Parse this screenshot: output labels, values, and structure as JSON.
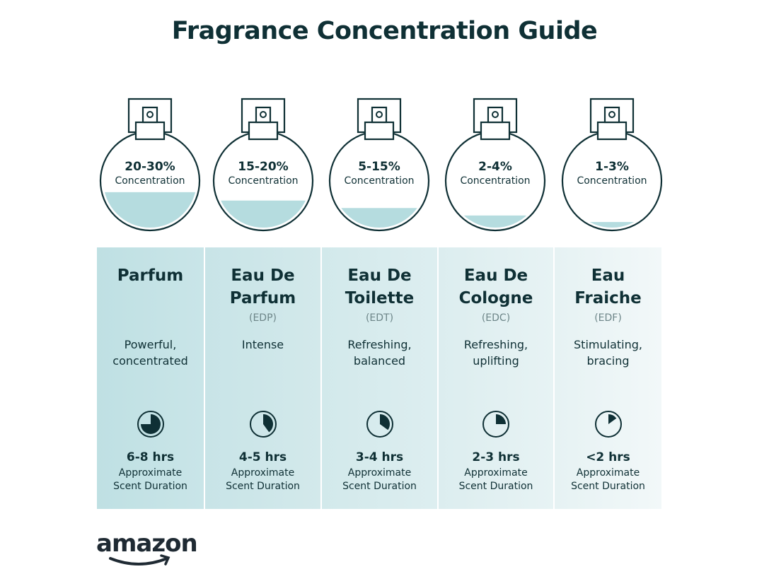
{
  "title": "Fragrance Concentration Guide",
  "concentration_label": "Concentration",
  "duration_label_line1": "Approximate",
  "duration_label_line2": "Scent Duration",
  "colors": {
    "text": "#0f3035",
    "liquid": "#b5dcdf",
    "outline": "#0f3035"
  },
  "types": [
    {
      "concentration": "20-30%",
      "fill_level": 0.38,
      "name_line1": "Parfum",
      "name_line2": "",
      "abbr": "",
      "desc_line1": "Powerful,",
      "desc_line2": "concentrated",
      "duration": "6-8 hrs",
      "clock_fraction": 0.75,
      "bg": [
        "#bfe0e3",
        "#c9e5e8"
      ]
    },
    {
      "concentration": "15-20%",
      "fill_level": 0.29,
      "name_line1": "Eau De",
      "name_line2": "Parfum",
      "abbr": "(EDP)",
      "desc_line1": "Intense",
      "desc_line2": "",
      "duration": "4-5 hrs",
      "clock_fraction": 0.4,
      "bg": [
        "#c8e4e7",
        "#d3e9eb"
      ]
    },
    {
      "concentration": "5-15%",
      "fill_level": 0.21,
      "name_line1": "Eau De",
      "name_line2": "Toilette",
      "abbr": "(EDT)",
      "desc_line1": "Refreshing,",
      "desc_line2": "balanced",
      "duration": "3-4 hrs",
      "clock_fraction": 0.35,
      "bg": [
        "#d2e9eb",
        "#ddeef0"
      ]
    },
    {
      "concentration": "2-4%",
      "fill_level": 0.13,
      "name_line1": "Eau De",
      "name_line2": "Cologne",
      "abbr": "(EDC)",
      "desc_line1": "Refreshing,",
      "desc_line2": "uplifting",
      "duration": "2-3 hrs",
      "clock_fraction": 0.25,
      "bg": [
        "#dcedef",
        "#e7f3f4"
      ]
    },
    {
      "concentration": "1-3%",
      "fill_level": 0.06,
      "name_line1": "Eau",
      "name_line2": "Fraiche",
      "abbr": "(EDF)",
      "desc_line1": "Stimulating,",
      "desc_line2": "bracing",
      "duration": "<2 hrs",
      "clock_fraction": 0.15,
      "bg": [
        "#e6f2f3",
        "#f2f8f9"
      ]
    }
  ],
  "logo": "amazon"
}
